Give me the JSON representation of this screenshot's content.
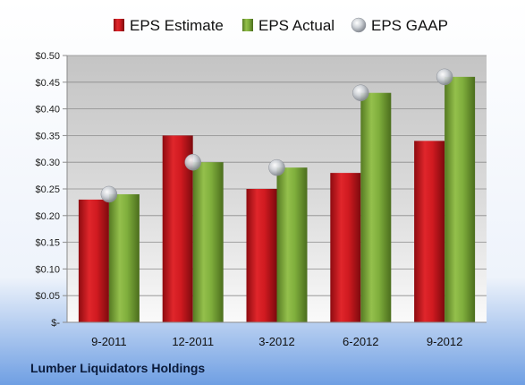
{
  "footer_text": "Lumber Liquidators Holdings",
  "colors": {
    "estimate": "#c8151b",
    "actual": "#7ca63a",
    "gaap": "#bfc3c8",
    "background_top": "#ffffff",
    "background_bottom": "#6f9fe3"
  },
  "chart_data": {
    "type": "bar",
    "categories": [
      "9-2011",
      "12-2011",
      "3-2012",
      "6-2012",
      "9-2012"
    ],
    "series": [
      {
        "name": "EPS Estimate",
        "kind": "bar",
        "values": [
          0.23,
          0.35,
          0.25,
          0.28,
          0.34
        ]
      },
      {
        "name": "EPS Actual",
        "kind": "bar",
        "values": [
          0.24,
          0.3,
          0.29,
          0.43,
          0.46
        ]
      },
      {
        "name": "EPS GAAP",
        "kind": "marker",
        "values": [
          0.24,
          0.3,
          0.29,
          0.43,
          0.46
        ]
      }
    ],
    "y_ticks": [
      "$-",
      "$0.05",
      "$0.10",
      "$0.15",
      "$0.20",
      "$0.25",
      "$0.30",
      "$0.35",
      "$0.40",
      "$0.45",
      "$0.50"
    ],
    "ylim": [
      0,
      0.5
    ],
    "grid": true,
    "legend_position": "top"
  }
}
